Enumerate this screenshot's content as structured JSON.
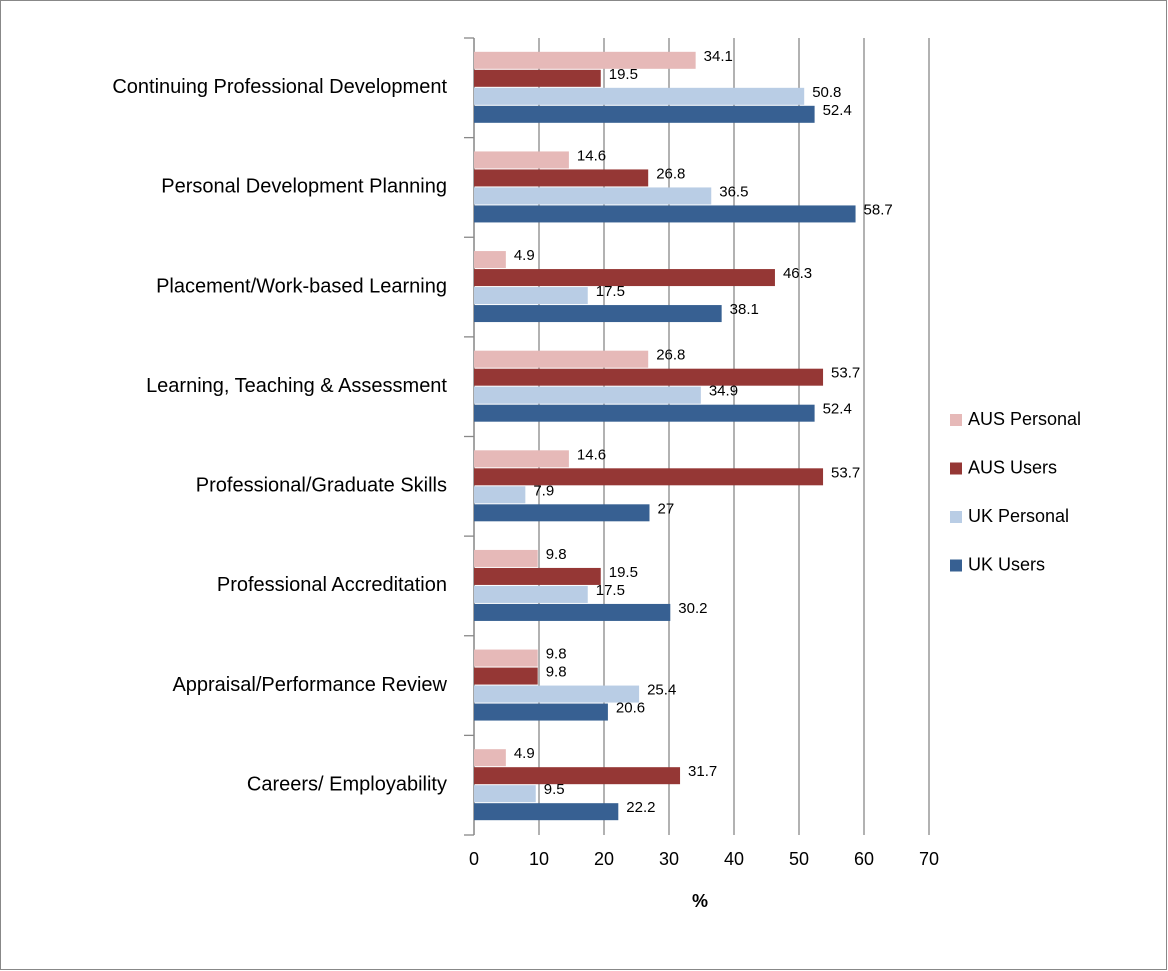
{
  "chart_data": {
    "type": "bar",
    "orientation": "horizontal",
    "x_label": "%",
    "categories": [
      "Continuing Professional Development",
      "Personal Development Planning",
      "Placement/Work-based Learning",
      "Learning, Teaching & Assessment",
      "Professional/Graduate Skills",
      "Professional Accreditation",
      "Appraisal/Performance Review",
      "Careers/ Employability"
    ],
    "series": [
      {
        "name": "AUS Personal",
        "color": "#e6b9b8",
        "values": [
          34.1,
          14.6,
          4.9,
          26.8,
          14.6,
          9.8,
          9.8,
          4.9
        ]
      },
      {
        "name": "AUS Users",
        "color": "#953735",
        "values": [
          19.5,
          26.8,
          46.3,
          53.7,
          53.7,
          19.5,
          9.8,
          31.7
        ]
      },
      {
        "name": "UK Personal",
        "color": "#b9cde5",
        "values": [
          50.8,
          36.5,
          17.5,
          34.9,
          7.9,
          17.5,
          25.4,
          9.5
        ]
      },
      {
        "name": "UK Users",
        "color": "#376092",
        "values": [
          52.4,
          58.7,
          38.1,
          52.4,
          27,
          30.2,
          20.6,
          22.2
        ]
      }
    ],
    "xlim": [
      0,
      70
    ],
    "xticks": [
      0,
      10,
      20,
      30,
      40,
      50,
      60,
      70
    ],
    "grid": true,
    "legend": "right"
  }
}
